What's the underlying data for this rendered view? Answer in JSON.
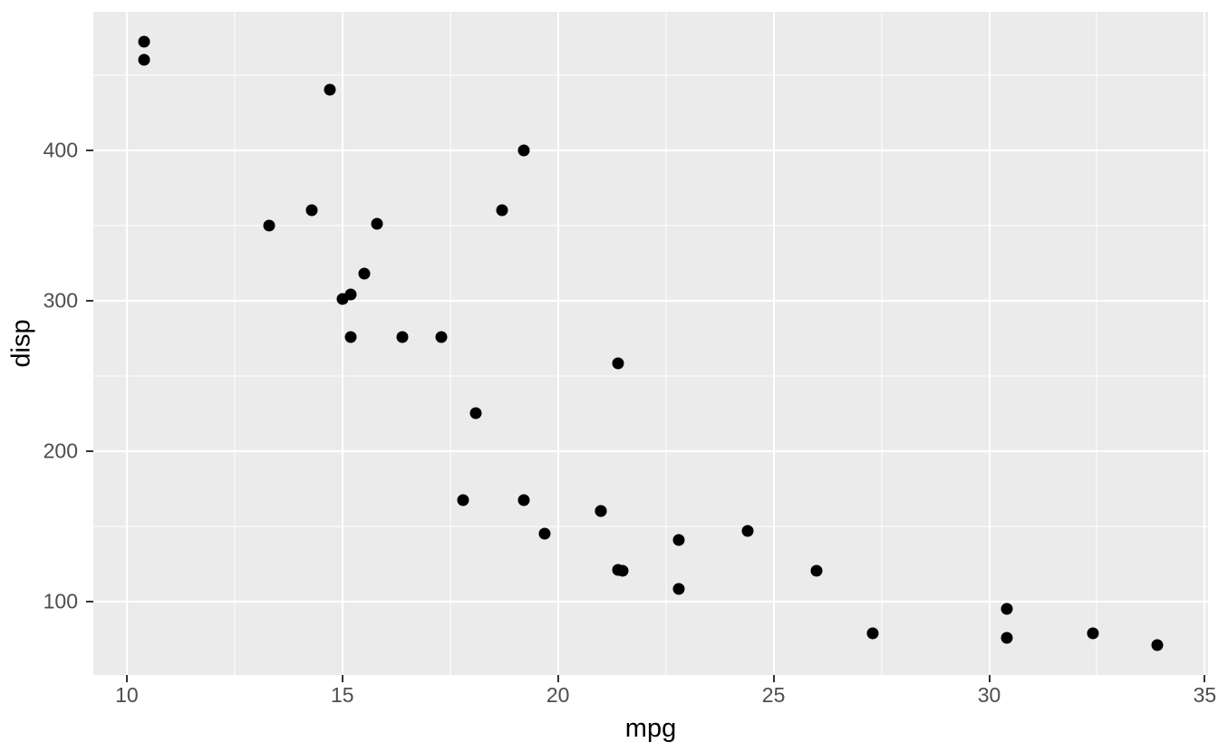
{
  "chart_data": {
    "type": "scatter",
    "title": "",
    "xlabel": "mpg",
    "ylabel": "disp",
    "xlim": [
      9.225,
      35.075
    ],
    "ylim": [
      51.05,
      492.05
    ],
    "x_ticks": [
      10,
      15,
      20,
      25,
      30,
      35
    ],
    "x_tick_labels": [
      "10",
      "15",
      "20",
      "25",
      "30",
      "35"
    ],
    "x_minor_ticks": [
      12.5,
      17.5,
      22.5,
      27.5,
      32.5
    ],
    "y_ticks": [
      100,
      200,
      300,
      400
    ],
    "y_tick_labels": [
      "100",
      "200",
      "300",
      "400"
    ],
    "y_minor_ticks": [
      150,
      250,
      350,
      450
    ],
    "grid": "major-and-minor",
    "legend": "none",
    "theme": {
      "panel_bg": "#EBEBEB",
      "grid_color": "#FFFFFF",
      "point_color": "#000000",
      "tick_mark_color": "#333333",
      "tick_text_color": "#4D4D4D",
      "axis_title_color": "#000000",
      "figure_bg": "#FFFFFF"
    },
    "points": [
      [
        21.0,
        160.0
      ],
      [
        21.0,
        160.0
      ],
      [
        22.8,
        108.0
      ],
      [
        21.4,
        258.0
      ],
      [
        18.7,
        360.0
      ],
      [
        18.1,
        225.0
      ],
      [
        14.3,
        360.0
      ],
      [
        24.4,
        146.7
      ],
      [
        22.8,
        140.8
      ],
      [
        19.2,
        167.6
      ],
      [
        17.8,
        167.6
      ],
      [
        16.4,
        275.8
      ],
      [
        17.3,
        275.8
      ],
      [
        15.2,
        275.8
      ],
      [
        10.4,
        472.0
      ],
      [
        10.4,
        460.0
      ],
      [
        14.7,
        440.0
      ],
      [
        32.4,
        78.7
      ],
      [
        30.4,
        75.7
      ],
      [
        33.9,
        71.1
      ],
      [
        21.5,
        120.1
      ],
      [
        15.5,
        318.0
      ],
      [
        15.2,
        304.0
      ],
      [
        13.3,
        350.0
      ],
      [
        19.2,
        400.0
      ],
      [
        27.3,
        79.0
      ],
      [
        26.0,
        120.3
      ],
      [
        30.4,
        95.1
      ],
      [
        15.8,
        351.0
      ],
      [
        19.7,
        145.0
      ],
      [
        15.0,
        301.0
      ],
      [
        21.4,
        121.0
      ]
    ]
  }
}
